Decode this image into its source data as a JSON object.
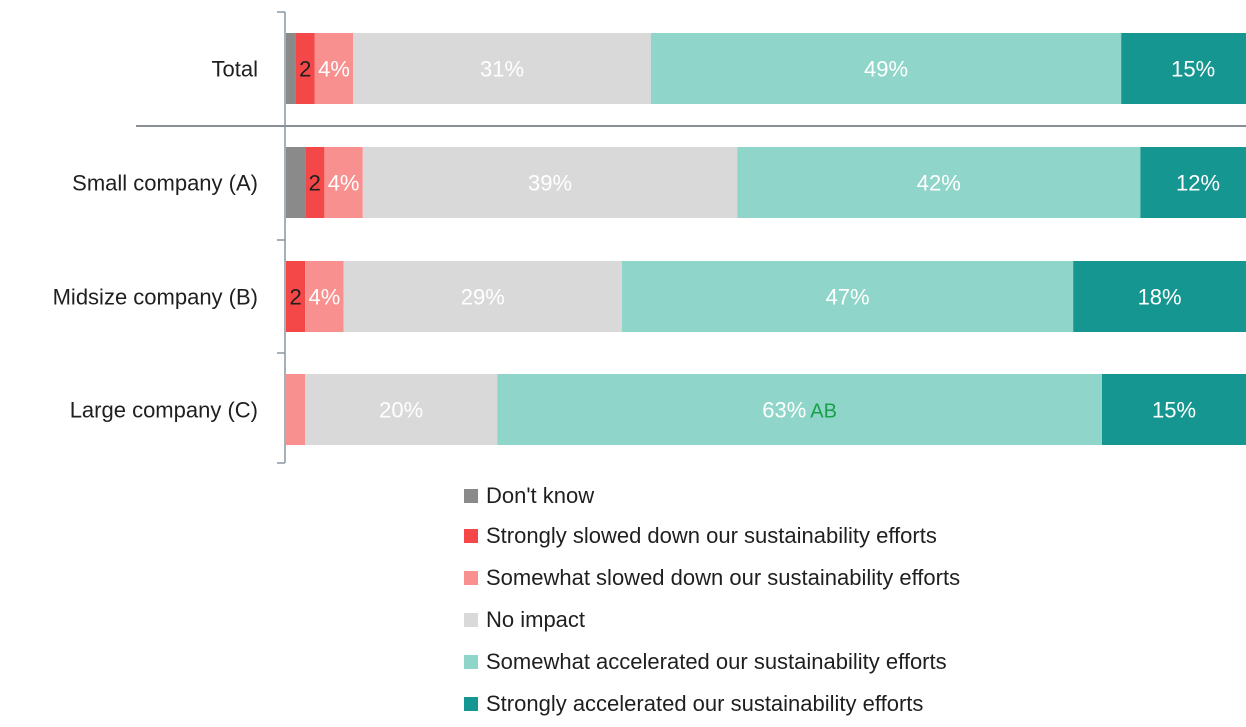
{
  "chart_data": {
    "type": "bar",
    "orientation": "horizontal",
    "stacked": true,
    "x_max": 100,
    "categories": [
      "Total",
      "Small company (A)",
      "Midsize company (B)",
      "Large company (C)"
    ],
    "series": [
      {
        "name": "Don't know",
        "color": "#8a8a8a",
        "values": [
          1,
          2,
          0,
          0
        ],
        "labels": [
          "",
          "",
          "",
          ""
        ],
        "label_color": "#1f1f1f"
      },
      {
        "name": "Strongly slowed down our sustainability efforts",
        "color": "#f44848",
        "values": [
          2,
          2,
          2,
          0
        ],
        "labels": [
          "2",
          "2",
          "2",
          ""
        ],
        "label_color": "#1f1f1f"
      },
      {
        "name": "Somewhat slowed down our sustainability efforts",
        "color": "#f99090",
        "values": [
          4,
          4,
          4,
          2
        ],
        "labels": [
          "4%",
          "4%",
          "4%",
          ""
        ],
        "label_color": "#ffffff"
      },
      {
        "name": "No impact",
        "color": "#d9d9d9",
        "values": [
          31,
          39,
          29,
          20
        ],
        "labels": [
          "31%",
          "39%",
          "29%",
          "20%"
        ],
        "label_color": "#ffffff"
      },
      {
        "name": "Somewhat accelerated our sustainability efforts",
        "color": "#90d5c9",
        "values": [
          49,
          42,
          47,
          63
        ],
        "labels": [
          "49%",
          "42%",
          "47%",
          "63%"
        ],
        "label_color": "#ffffff"
      },
      {
        "name": "Strongly accelerated our sustainability efforts",
        "color": "#169690",
        "values": [
          15,
          12,
          18,
          15
        ],
        "labels": [
          "15%",
          "12%",
          "18%",
          "15%"
        ],
        "label_color": "#ffffff"
      }
    ],
    "significance": [
      {
        "category_index": 3,
        "series_index": 4,
        "text": "AB",
        "color": "#19a04a"
      }
    ],
    "legend_position": "bottom",
    "grid": false
  }
}
